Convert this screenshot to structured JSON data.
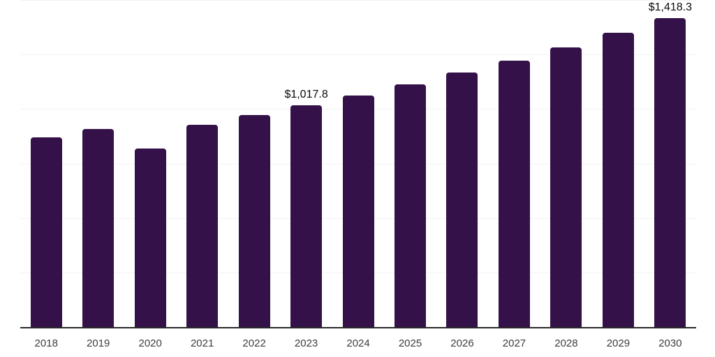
{
  "chart_data": {
    "type": "bar",
    "title": "",
    "xlabel": "",
    "ylabel": "",
    "categories": [
      "2018",
      "2019",
      "2020",
      "2021",
      "2022",
      "2023",
      "2024",
      "2025",
      "2026",
      "2027",
      "2028",
      "2029",
      "2030"
    ],
    "values": [
      870,
      910,
      818,
      929,
      974,
      1017.8,
      1063,
      1114,
      1168,
      1223,
      1283,
      1350,
      1418.3
    ],
    "data_labels": {
      "2023": "$1,017.8",
      "2030": "$1,418.3"
    },
    "ylim": [
      0,
      1500
    ],
    "gridline_step": 250,
    "grid": "horizontal",
    "legend_position": "none",
    "colors": {
      "bar": "#341148",
      "gridline": "#f2f2f2",
      "axis_line": "#2a2a2a",
      "tick_label": "#3d3d3d",
      "data_label": "#0a0a0a",
      "background": "#ffffff"
    }
  }
}
